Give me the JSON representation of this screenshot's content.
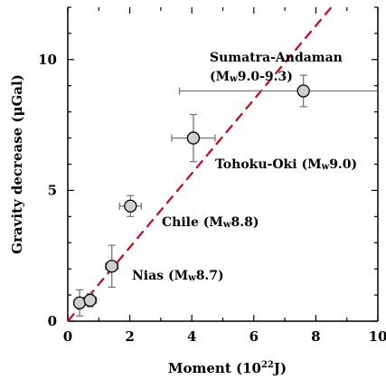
{
  "chart_data": {
    "type": "scatter",
    "xlabel_main": "Moment (10",
    "xlabel_sup": "22",
    "xlabel_end": "J)",
    "ylabel": "Gravity decrease (μGal)",
    "xlim": [
      0,
      10
    ],
    "ylim": [
      0,
      12
    ],
    "x_ticks": [
      0,
      2,
      4,
      6,
      8,
      10
    ],
    "y_ticks": [
      0,
      5,
      10
    ],
    "grid": false,
    "points": [
      {
        "x": 0.38,
        "y": 0.7,
        "xerr": 0.1,
        "yerr": 0.5
      },
      {
        "x": 0.72,
        "y": 0.8,
        "xerr": 0.2,
        "yerr": 0.25
      },
      {
        "x": 1.42,
        "y": 2.1,
        "xerr": 0.2,
        "yerr": 0.8
      },
      {
        "x": 2.02,
        "y": 4.4,
        "xerr": 0.35,
        "yerr": 0.4
      },
      {
        "x": 4.05,
        "y": 7.0,
        "xerr": 0.7,
        "yerr": 0.9
      },
      {
        "x": 7.6,
        "y": 8.8,
        "xerr_low": 4.0,
        "xerr_high": 3.0,
        "yerr": 0.6
      }
    ],
    "trend_line": {
      "x": [
        0,
        8.5
      ],
      "y": [
        0,
        12
      ],
      "color": "#d4001a",
      "style": "dashed"
    },
    "annotations": [
      {
        "id": "nias",
        "pre": "Nias (M",
        "sub": "w",
        "post": "8.7)"
      },
      {
        "id": "chile",
        "pre": "Chile (M",
        "sub": "w",
        "post": "8.8)"
      },
      {
        "id": "tohoku",
        "pre": "Tohoku-Oki (M",
        "sub": "w",
        "post": "9.0)"
      },
      {
        "id": "sumatra1",
        "pre": "Sumatra-Andaman",
        "sub": "",
        "post": ""
      },
      {
        "id": "sumatra2",
        "pre": "(M",
        "sub": "w",
        "post": "9.0-9.3)"
      }
    ]
  },
  "colors": {
    "marker_fill": "#cfcfcf",
    "errorbar": "#777777",
    "axis": "#000000"
  }
}
